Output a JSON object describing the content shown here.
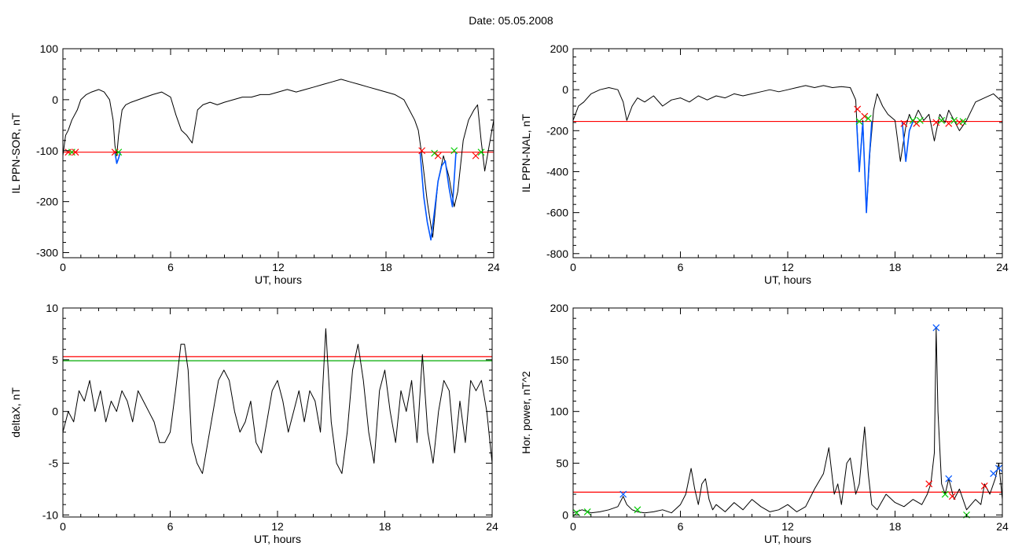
{
  "title": "Date:  05.05.2008",
  "chart_data": [
    {
      "type": "line",
      "ylabel": "IL PPN-SOR, nT",
      "xlabel": "UT, hours",
      "xlim": [
        0,
        24
      ],
      "ylim": [
        -310,
        100
      ],
      "xticks": [
        0,
        6,
        12,
        18,
        24
      ],
      "yticks": [
        100,
        0,
        -100,
        -200,
        -300
      ],
      "threshold": {
        "value": -103,
        "color": "#ff0000"
      },
      "series": [
        {
          "color": "#000000",
          "x": [
            0,
            0.15,
            0.3,
            0.5,
            0.8,
            1.0,
            1.3,
            1.6,
            2.0,
            2.3,
            2.6,
            2.8,
            2.9,
            3.0,
            3.1,
            3.3,
            3.5,
            3.8,
            4.2,
            4.6,
            5.0,
            5.5,
            6.0,
            6.3,
            6.6,
            6.9,
            7.2,
            7.5,
            7.8,
            8.2,
            8.6,
            9.0,
            9.5,
            10.0,
            10.5,
            11.0,
            11.5,
            12.0,
            12.5,
            13.0,
            13.5,
            14.0,
            14.5,
            15.0,
            15.5,
            16.0,
            16.5,
            17.0,
            17.5,
            18.0,
            18.5,
            19.0,
            19.3,
            19.6,
            19.8,
            20.0,
            20.3,
            20.6,
            20.9,
            21.2,
            21.5,
            21.8,
            22.0,
            22.3,
            22.6,
            22.9,
            23.1,
            23.3,
            23.5,
            23.7,
            24.0
          ],
          "y": [
            -110,
            -70,
            -60,
            -40,
            -20,
            0,
            10,
            15,
            20,
            15,
            0,
            -40,
            -90,
            -110,
            -70,
            -20,
            -10,
            -5,
            0,
            5,
            10,
            15,
            5,
            -30,
            -60,
            -70,
            -85,
            -20,
            -10,
            -5,
            -10,
            -5,
            0,
            5,
            5,
            10,
            10,
            15,
            20,
            15,
            20,
            25,
            30,
            35,
            40,
            35,
            30,
            25,
            20,
            15,
            10,
            0,
            -20,
            -40,
            -60,
            -110,
            -200,
            -270,
            -160,
            -110,
            -150,
            -210,
            -180,
            -80,
            -40,
            -20,
            -10,
            -80,
            -140,
            -100,
            -40
          ]
        },
        {
          "color": "#0055ff",
          "x": [
            19.9,
            20.1,
            20.3,
            20.5,
            20.7,
            20.9,
            21.1,
            21.3,
            21.5,
            21.7,
            21.9
          ],
          "y": [
            -103,
            -190,
            -240,
            -275,
            -220,
            -160,
            -130,
            -120,
            -170,
            -210,
            -103
          ]
        },
        {
          "color": "#0055ff",
          "x": [
            2.9,
            3.0,
            3.1,
            3.2
          ],
          "y": [
            -103,
            -125,
            -115,
            -103
          ]
        }
      ],
      "markers": [
        {
          "x": 0.3,
          "y": -103,
          "symbol": "x",
          "color": "#ff0000"
        },
        {
          "x": 0.5,
          "y": -103,
          "symbol": "x",
          "color": "#00cc00"
        },
        {
          "x": 0.7,
          "y": -103,
          "symbol": "x",
          "color": "#ff0000"
        },
        {
          "x": 2.9,
          "y": -103,
          "symbol": "x",
          "color": "#ff0000"
        },
        {
          "x": 3.1,
          "y": -103,
          "symbol": "x",
          "color": "#00cc00"
        },
        {
          "x": 20.0,
          "y": -100,
          "symbol": "x",
          "color": "#ff0000"
        },
        {
          "x": 20.7,
          "y": -105,
          "symbol": "x",
          "color": "#00cc00"
        },
        {
          "x": 20.9,
          "y": -110,
          "symbol": "x",
          "color": "#ff0000"
        },
        {
          "x": 21.8,
          "y": -100,
          "symbol": "x",
          "color": "#00cc00"
        },
        {
          "x": 23.0,
          "y": -110,
          "symbol": "x",
          "color": "#ff0000"
        },
        {
          "x": 23.3,
          "y": -103,
          "symbol": "x",
          "color": "#00cc00"
        }
      ]
    },
    {
      "type": "line",
      "ylabel": "IL PPN-NAL, nT",
      "xlabel": "UT, hours",
      "xlim": [
        0,
        24
      ],
      "ylim": [
        -820,
        200
      ],
      "xticks": [
        0,
        6,
        12,
        18,
        24
      ],
      "yticks": [
        200,
        0,
        -200,
        -400,
        -600,
        -800
      ],
      "threshold": {
        "value": -155,
        "color": "#ff0000"
      },
      "series": [
        {
          "color": "#000000",
          "x": [
            0,
            0.3,
            0.6,
            1.0,
            1.5,
            2.0,
            2.5,
            2.8,
            3.0,
            3.3,
            3.6,
            4.0,
            4.5,
            5.0,
            5.5,
            6.0,
            6.5,
            7.0,
            7.5,
            8.0,
            8.5,
            9.0,
            9.5,
            10.0,
            10.5,
            11.0,
            11.5,
            12.0,
            12.5,
            13.0,
            13.5,
            14.0,
            14.5,
            15.0,
            15.5,
            15.8,
            16.0,
            16.2,
            16.4,
            16.6,
            16.8,
            17.0,
            17.3,
            17.6,
            18.0,
            18.3,
            18.6,
            18.8,
            19.0,
            19.3,
            19.6,
            19.9,
            20.2,
            20.5,
            20.8,
            21.0,
            21.3,
            21.6,
            22.0,
            22.5,
            23.0,
            23.5,
            24.0
          ],
          "y": [
            -150,
            -80,
            -60,
            -20,
            0,
            10,
            0,
            -60,
            -150,
            -80,
            -40,
            -60,
            -30,
            -80,
            -50,
            -40,
            -60,
            -30,
            -50,
            -30,
            -40,
            -20,
            -30,
            -20,
            -10,
            0,
            -10,
            0,
            10,
            20,
            10,
            20,
            10,
            15,
            10,
            -50,
            -400,
            -150,
            -600,
            -300,
            -100,
            -20,
            -80,
            -120,
            -150,
            -350,
            -180,
            -120,
            -160,
            -100,
            -150,
            -120,
            -250,
            -120,
            -160,
            -100,
            -150,
            -200,
            -150,
            -60,
            -40,
            -20,
            -60
          ]
        },
        {
          "color": "#0055ff",
          "x": [
            15.85,
            16.0,
            16.2,
            16.4,
            16.55,
            16.7
          ],
          "y": [
            -155,
            -400,
            -160,
            -600,
            -350,
            -155
          ]
        },
        {
          "color": "#0055ff",
          "x": [
            18.4,
            18.6,
            18.8,
            19.0
          ],
          "y": [
            -155,
            -350,
            -200,
            -155
          ]
        }
      ],
      "markers": [
        {
          "x": 15.9,
          "y": -95,
          "symbol": "x",
          "color": "#ff0000"
        },
        {
          "x": 16.0,
          "y": -155,
          "symbol": "x",
          "color": "#00cc00"
        },
        {
          "x": 16.3,
          "y": -130,
          "symbol": "x",
          "color": "#ff0000"
        },
        {
          "x": 16.5,
          "y": -140,
          "symbol": "x",
          "color": "#00cc00"
        },
        {
          "x": 18.5,
          "y": -165,
          "symbol": "x",
          "color": "#ff0000"
        },
        {
          "x": 19.0,
          "y": -150,
          "symbol": "x",
          "color": "#00cc00"
        },
        {
          "x": 19.2,
          "y": -165,
          "symbol": "x",
          "color": "#ff0000"
        },
        {
          "x": 19.4,
          "y": -150,
          "symbol": "x",
          "color": "#00cc00"
        },
        {
          "x": 20.3,
          "y": -160,
          "symbol": "x",
          "color": "#ff0000"
        },
        {
          "x": 20.6,
          "y": -150,
          "symbol": "x",
          "color": "#00cc00"
        },
        {
          "x": 21.0,
          "y": -165,
          "symbol": "x",
          "color": "#ff0000"
        },
        {
          "x": 21.3,
          "y": -150,
          "symbol": "x",
          "color": "#00cc00"
        },
        {
          "x": 21.6,
          "y": -160,
          "symbol": "x",
          "color": "#ff0000"
        },
        {
          "x": 21.8,
          "y": -155,
          "symbol": "x",
          "color": "#00cc00"
        }
      ]
    },
    {
      "type": "line",
      "ylabel": "deltaX, nT",
      "xlabel": "UT, hours",
      "xlim": [
        0,
        24
      ],
      "ylim": [
        -10.2,
        10
      ],
      "xticks": [
        0,
        6,
        12,
        18,
        24
      ],
      "yticks": [
        10,
        5,
        0,
        -5,
        -10
      ],
      "thresholds": [
        {
          "value": 5.3,
          "color": "#ff0000"
        },
        {
          "value": 4.9,
          "color": "#00aa00"
        }
      ],
      "series": [
        {
          "color": "#000000",
          "x": [
            0,
            0.3,
            0.6,
            0.9,
            1.2,
            1.5,
            1.8,
            2.1,
            2.4,
            2.7,
            3.0,
            3.3,
            3.6,
            3.9,
            4.2,
            4.5,
            4.8,
            5.1,
            5.4,
            5.7,
            6.0,
            6.3,
            6.6,
            6.8,
            7.0,
            7.2,
            7.5,
            7.8,
            8.1,
            8.4,
            8.7,
            9.0,
            9.3,
            9.6,
            9.9,
            10.2,
            10.5,
            10.8,
            11.1,
            11.4,
            11.7,
            12.0,
            12.3,
            12.6,
            12.9,
            13.2,
            13.5,
            13.8,
            14.1,
            14.4,
            14.7,
            15.0,
            15.3,
            15.6,
            15.9,
            16.2,
            16.5,
            16.8,
            17.1,
            17.4,
            17.7,
            18.0,
            18.3,
            18.6,
            18.9,
            19.2,
            19.5,
            19.8,
            20.1,
            20.4,
            20.7,
            21.0,
            21.3,
            21.6,
            21.9,
            22.2,
            22.5,
            22.8,
            23.1,
            23.4,
            23.7,
            24.0
          ],
          "y": [
            -2,
            0,
            -1,
            2,
            1,
            3,
            0,
            2,
            -1,
            1,
            0,
            2,
            1,
            -1,
            2,
            1,
            0,
            -1,
            -3,
            -3,
            -2,
            2,
            6.5,
            6.5,
            4,
            -3,
            -5,
            -6,
            -3,
            0,
            3,
            4,
            3,
            0,
            -2,
            -1,
            1,
            -3,
            -4,
            -1,
            2,
            3,
            1,
            -2,
            0,
            2,
            -1,
            2,
            1,
            -2,
            8,
            -1,
            -5,
            -6,
            -2,
            4,
            6.5,
            3,
            -2,
            -5,
            2,
            4,
            0,
            -3,
            2,
            0,
            3,
            -3,
            5.5,
            -2,
            -5,
            0,
            3,
            2,
            -4,
            1,
            -3,
            3,
            2,
            3,
            0,
            -5
          ]
        }
      ]
    },
    {
      "type": "line",
      "ylabel": "Hor. power, nT^2",
      "xlabel": "UT, hours",
      "xlim": [
        0,
        24
      ],
      "ylim": [
        -2,
        200
      ],
      "xticks": [
        0,
        6,
        12,
        18,
        24
      ],
      "yticks": [
        200,
        150,
        100,
        50,
        0
      ],
      "threshold": {
        "value": 22,
        "color": "#ff0000"
      },
      "series": [
        {
          "color": "#000000",
          "x": [
            0,
            0.5,
            1.0,
            1.5,
            2.0,
            2.5,
            2.8,
            3.0,
            3.3,
            3.6,
            4.0,
            4.5,
            5.0,
            5.5,
            6.0,
            6.3,
            6.6,
            6.8,
            7.0,
            7.2,
            7.4,
            7.6,
            7.8,
            8.0,
            8.5,
            9.0,
            9.5,
            10.0,
            10.5,
            11.0,
            11.5,
            12.0,
            12.5,
            13.0,
            13.5,
            14.0,
            14.3,
            14.6,
            14.8,
            15.0,
            15.3,
            15.5,
            15.8,
            16.0,
            16.3,
            16.5,
            16.7,
            17.0,
            17.5,
            18.0,
            18.5,
            19.0,
            19.5,
            19.8,
            20.0,
            20.2,
            20.3,
            20.4,
            20.6,
            20.8,
            21.0,
            21.3,
            21.6,
            22.0,
            22.5,
            22.8,
            23.0,
            23.3,
            23.6,
            23.8,
            24.0
          ],
          "y": [
            2,
            5,
            2,
            3,
            5,
            8,
            18,
            10,
            5,
            3,
            2,
            3,
            5,
            2,
            10,
            20,
            45,
            25,
            10,
            30,
            35,
            15,
            5,
            10,
            3,
            12,
            5,
            15,
            8,
            3,
            5,
            10,
            3,
            8,
            25,
            40,
            65,
            20,
            30,
            10,
            50,
            55,
            20,
            30,
            85,
            40,
            10,
            5,
            20,
            12,
            8,
            15,
            10,
            20,
            30,
            60,
            180,
            100,
            30,
            20,
            35,
            15,
            25,
            5,
            15,
            10,
            30,
            20,
            35,
            50,
            15
          ]
        }
      ],
      "markers": [
        {
          "x": 0.2,
          "y": 2,
          "symbol": "x",
          "color": "#00cc00"
        },
        {
          "x": 0.8,
          "y": 3,
          "symbol": "x",
          "color": "#00cc00"
        },
        {
          "x": 2.8,
          "y": 20,
          "symbol": "x",
          "color": "#0055ff"
        },
        {
          "x": 3.6,
          "y": 5,
          "symbol": "x",
          "color": "#00cc00"
        },
        {
          "x": 19.9,
          "y": 30,
          "symbol": "x",
          "color": "#ff0000"
        },
        {
          "x": 20.3,
          "y": 181,
          "symbol": "x",
          "color": "#0055ff"
        },
        {
          "x": 20.8,
          "y": 20,
          "symbol": "x",
          "color": "#00cc00"
        },
        {
          "x": 21.0,
          "y": 35,
          "symbol": "x",
          "color": "#0055ff"
        },
        {
          "x": 21.2,
          "y": 18,
          "symbol": "x",
          "color": "#ff0000"
        },
        {
          "x": 22.0,
          "y": 0,
          "symbol": "x",
          "color": "#00cc00"
        },
        {
          "x": 23.0,
          "y": 28,
          "symbol": "x",
          "color": "#ff0000"
        },
        {
          "x": 23.5,
          "y": 40,
          "symbol": "x",
          "color": "#0055ff"
        },
        {
          "x": 23.8,
          "y": 45,
          "symbol": "x",
          "color": "#0055ff"
        }
      ]
    }
  ]
}
